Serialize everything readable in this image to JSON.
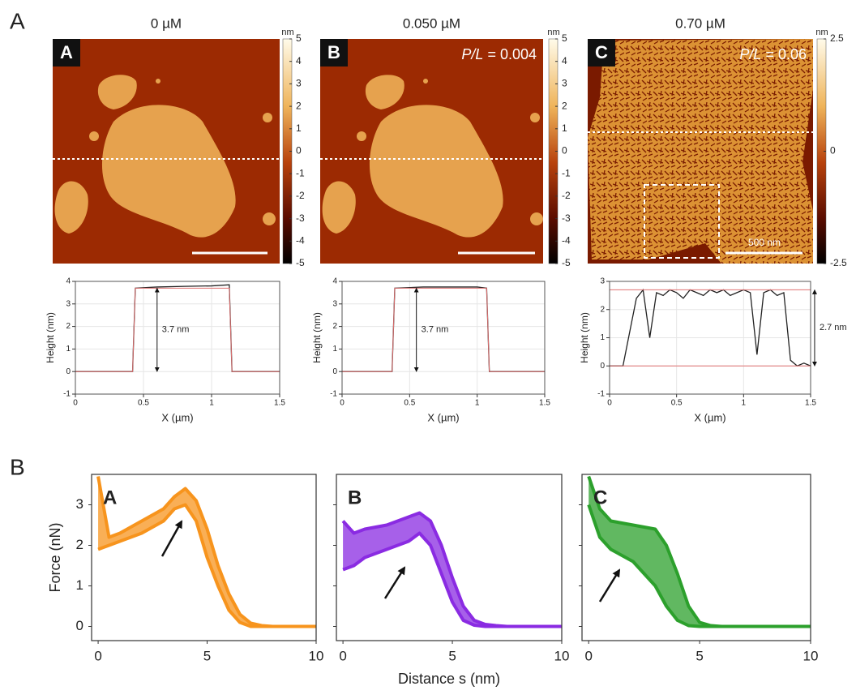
{
  "figure_labels": [
    "A",
    "B"
  ],
  "images": [
    {
      "title": "0 µM",
      "label": "A",
      "colorbar": {
        "unit": "nm",
        "lim": [
          -5,
          5
        ],
        "ticks": [
          5,
          4,
          3,
          2,
          1,
          0,
          -1,
          -2,
          -3,
          -4,
          -5
        ]
      }
    },
    {
      "title": "0.050 µM",
      "label": "B",
      "ratio": {
        "symbol": "P/L",
        "text": "= 0.004"
      },
      "colorbar": {
        "unit": "nm",
        "lim": [
          -5,
          5
        ],
        "ticks": [
          5,
          4,
          3,
          2,
          1,
          0,
          -1,
          -2,
          -3,
          -4,
          -5
        ]
      }
    },
    {
      "title": "0.70 µM",
      "label": "C",
      "ratio": {
        "symbol": "P/L",
        "text": "= 0.06"
      },
      "scale_label": "500 nm",
      "colorbar": {
        "unit": "nm",
        "lim": [
          -2.5,
          2.5
        ],
        "ticks": [
          2.5,
          0,
          -2.5
        ]
      }
    }
  ],
  "chart_data": [
    {
      "type": "line",
      "x": [
        0,
        0.42,
        0.44,
        0.6,
        0.8,
        1.0,
        1.13,
        1.15,
        1.5
      ],
      "series": [
        {
          "color": "#222222",
          "values": [
            0,
            0,
            3.7,
            3.75,
            3.78,
            3.8,
            3.85,
            0,
            0
          ]
        },
        {
          "color": "#e07070",
          "values": [
            0,
            0,
            3.7,
            3.7,
            3.7,
            3.7,
            3.7,
            0,
            0
          ]
        }
      ],
      "xlim": [
        0,
        1.5
      ],
      "ylim": [
        -1,
        4
      ],
      "xticks": [
        0,
        0.5,
        1,
        1.5
      ],
      "yticks": [
        -1,
        0,
        1,
        2,
        3,
        4
      ],
      "grid": true,
      "xlabel": "X (µm)",
      "ylabel": "Height (nm)",
      "annotation": {
        "text": "3.7 nm",
        "x": 0.6,
        "from": 0,
        "to": 3.7
      }
    },
    {
      "type": "line",
      "x": [
        0,
        0.37,
        0.39,
        0.6,
        0.8,
        1.0,
        1.07,
        1.09,
        1.5
      ],
      "series": [
        {
          "color": "#222222",
          "values": [
            0,
            0,
            3.7,
            3.75,
            3.75,
            3.75,
            3.7,
            0,
            0
          ]
        },
        {
          "color": "#e07070",
          "values": [
            0,
            0,
            3.7,
            3.7,
            3.7,
            3.7,
            3.7,
            0,
            0
          ]
        }
      ],
      "xlim": [
        0,
        1.5
      ],
      "ylim": [
        -1,
        4
      ],
      "xticks": [
        0,
        0.5,
        1,
        1.5
      ],
      "yticks": [
        -1,
        0,
        1,
        2,
        3,
        4
      ],
      "grid": true,
      "xlabel": "X (µm)",
      "ylabel": "Height (nm)",
      "annotation": {
        "text": "3.7 nm",
        "x": 0.55,
        "from": 0,
        "to": 3.7
      }
    },
    {
      "type": "line",
      "x": [
        0,
        0.05,
        0.1,
        0.15,
        0.2,
        0.25,
        0.3,
        0.35,
        0.4,
        0.45,
        0.5,
        0.55,
        0.6,
        0.65,
        0.7,
        0.75,
        0.8,
        0.85,
        0.9,
        0.95,
        1,
        1.05,
        1.1,
        1.15,
        1.2,
        1.25,
        1.3,
        1.35,
        1.4,
        1.45,
        1.5
      ],
      "series": [
        {
          "color": "#222222",
          "values": [
            0,
            0,
            0,
            1.2,
            2.4,
            2.7,
            1.0,
            2.6,
            2.5,
            2.7,
            2.6,
            2.4,
            2.7,
            2.6,
            2.5,
            2.7,
            2.6,
            2.7,
            2.5,
            2.6,
            2.7,
            2.6,
            0.4,
            2.6,
            2.7,
            2.5,
            2.6,
            0.2,
            0,
            0.1,
            0
          ]
        }
      ],
      "reference_lines": [
        {
          "value": 2.7,
          "color": "#e07070"
        },
        {
          "value": 0,
          "color": "#e07070"
        }
      ],
      "xlim": [
        0,
        1.5
      ],
      "ylim": [
        -1,
        3
      ],
      "xticks": [
        0,
        0.5,
        1,
        1.5
      ],
      "yticks": [
        -1,
        0,
        1,
        2,
        3
      ],
      "grid": true,
      "xlabel": "X (µm)",
      "ylabel": "Height (nm)",
      "annotation": {
        "text": "2.7 nm",
        "x": 1.53,
        "from": 0,
        "to": 2.7
      }
    },
    {
      "type": "band",
      "label": "A",
      "x": [
        0,
        0.5,
        1,
        2,
        3,
        3.5,
        4,
        4.5,
        5,
        5.5,
        6,
        6.5,
        7,
        7.5,
        8,
        10
      ],
      "series": [
        {
          "color": "#f7941d",
          "values": [
            3.7,
            2.2,
            2.3,
            2.6,
            2.9,
            3.2,
            3.4,
            3.1,
            2.4,
            1.5,
            0.8,
            0.3,
            0.08,
            0.02,
            0,
            0
          ]
        },
        {
          "color": "#f7941d",
          "values": [
            1.9,
            2.0,
            2.1,
            2.3,
            2.6,
            2.9,
            3.0,
            2.6,
            1.7,
            1.0,
            0.4,
            0.1,
            0,
            0,
            0,
            0
          ]
        }
      ],
      "xlim": [
        -0.3,
        10
      ],
      "ylim": [
        -0.35,
        3.75
      ],
      "xticks": [
        0,
        5,
        10
      ],
      "yticks": [
        0,
        1,
        2,
        3
      ],
      "ylabel": "Force (nN)"
    },
    {
      "type": "band",
      "label": "B",
      "x": [
        0,
        0.5,
        1,
        2,
        3,
        3.5,
        4,
        4.5,
        5,
        5.5,
        6,
        6.5,
        7,
        7.5,
        8,
        10
      ],
      "series": [
        {
          "color": "#8a2be2",
          "values": [
            2.6,
            2.3,
            2.4,
            2.5,
            2.7,
            2.8,
            2.6,
            2.0,
            1.2,
            0.5,
            0.15,
            0.05,
            0.02,
            0,
            0,
            0
          ]
        },
        {
          "color": "#8a2be2",
          "values": [
            1.4,
            1.5,
            1.7,
            1.9,
            2.1,
            2.3,
            2.0,
            1.3,
            0.6,
            0.15,
            0.03,
            0,
            0,
            0,
            0,
            0
          ]
        }
      ],
      "xlim": [
        -0.3,
        10
      ],
      "ylim": [
        -0.35,
        3.75
      ],
      "xticks": [
        0,
        5,
        10
      ],
      "yticks": [
        0,
        1,
        2,
        3
      ],
      "xlabel": "Distance s (nm)"
    },
    {
      "type": "band",
      "label": "C",
      "x": [
        0,
        0.5,
        1,
        2,
        3,
        3.5,
        4,
        4.5,
        5,
        5.5,
        6,
        6.5,
        7,
        7.5,
        8,
        10
      ],
      "series": [
        {
          "color": "#2ca02c",
          "values": [
            3.7,
            2.9,
            2.6,
            2.5,
            2.4,
            2.0,
            1.3,
            0.5,
            0.1,
            0.02,
            0,
            0,
            0,
            0,
            0,
            0
          ]
        },
        {
          "color": "#2ca02c",
          "values": [
            3.0,
            2.2,
            1.9,
            1.6,
            1.0,
            0.5,
            0.15,
            0.02,
            0,
            0,
            0,
            0,
            0,
            0,
            0,
            0
          ]
        }
      ],
      "xlim": [
        -0.3,
        10
      ],
      "ylim": [
        -0.35,
        3.75
      ],
      "xticks": [
        0,
        5,
        10
      ],
      "yticks": [
        0,
        1,
        2,
        3
      ]
    }
  ]
}
